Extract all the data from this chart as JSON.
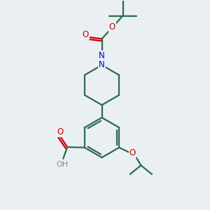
{
  "bg_color": "#eaeff4",
  "bond_color": "#2d6b4a",
  "bond_width": 1.6,
  "N_color": "#0000cc",
  "O_color": "#cc0000",
  "H_color": "#7a9090",
  "figsize": [
    3.0,
    3.0
  ],
  "dpi": 100,
  "xlim": [
    0,
    10
  ],
  "ylim": [
    0,
    10
  ]
}
